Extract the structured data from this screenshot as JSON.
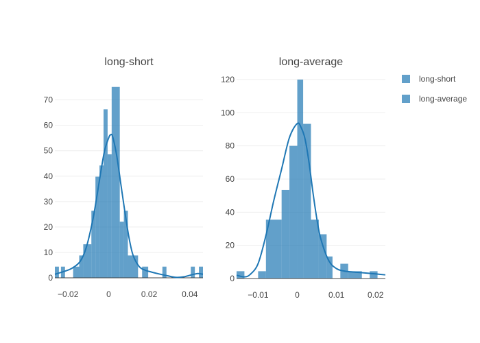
{
  "chart_data": [
    {
      "type": "histogram",
      "title": "long-short",
      "color": "#1f77b4",
      "xlim": [
        -0.0265,
        0.0465
      ],
      "ylim": [
        0,
        78
      ],
      "xticks": [
        -0.02,
        0,
        0.02,
        0.04
      ],
      "xtick_labels": [
        "−0.02",
        "0",
        "0.02",
        "0.04"
      ],
      "yticks": [
        0,
        10,
        20,
        30,
        40,
        50,
        60,
        70
      ],
      "bins": [
        {
          "x0": -0.0265,
          "x1": -0.0245,
          "y": 4.4
        },
        {
          "x0": -0.0235,
          "x1": -0.0215,
          "y": 4.4
        },
        {
          "x0": -0.0175,
          "x1": -0.0145,
          "y": 4.4
        },
        {
          "x0": -0.0145,
          "x1": -0.0125,
          "y": 8.8
        },
        {
          "x0": -0.0125,
          "x1": -0.0085,
          "y": 13.2
        },
        {
          "x0": -0.0085,
          "x1": -0.0065,
          "y": 26.4
        },
        {
          "x0": -0.0065,
          "x1": -0.0045,
          "y": 39.8
        },
        {
          "x0": -0.0045,
          "x1": -0.0025,
          "y": 44.2
        },
        {
          "x0": -0.0025,
          "x1": -0.0005,
          "y": 66.3
        },
        {
          "x0": -0.0005,
          "x1": 0.0015,
          "y": 48.6
        },
        {
          "x0": 0.0015,
          "x1": 0.0055,
          "y": 75.1
        },
        {
          "x0": 0.0055,
          "x1": 0.0075,
          "y": 22.1
        },
        {
          "x0": 0.0075,
          "x1": 0.0095,
          "y": 26.4
        },
        {
          "x0": 0.0095,
          "x1": 0.0145,
          "y": 8.8
        },
        {
          "x0": 0.0165,
          "x1": 0.0195,
          "y": 4.4
        },
        {
          "x0": 0.0265,
          "x1": 0.0285,
          "y": 4.4
        },
        {
          "x0": 0.0405,
          "x1": 0.0425,
          "y": 4.4
        },
        {
          "x0": 0.0445,
          "x1": 0.0465,
          "y": 4.4
        }
      ],
      "kde": [
        [
          -0.0265,
          1.4
        ],
        [
          -0.022,
          2.5
        ],
        [
          -0.018,
          3.8
        ],
        [
          -0.014,
          6.5
        ],
        [
          -0.011,
          12
        ],
        [
          -0.008,
          22
        ],
        [
          -0.006,
          31
        ],
        [
          -0.004,
          41
        ],
        [
          -0.002,
          50
        ],
        [
          0,
          55
        ],
        [
          0.001,
          56.3
        ],
        [
          0.002,
          55.5
        ],
        [
          0.004,
          48
        ],
        [
          0.006,
          37
        ],
        [
          0.008,
          26
        ],
        [
          0.01,
          16
        ],
        [
          0.012,
          9
        ],
        [
          0.015,
          4.5
        ],
        [
          0.018,
          3
        ],
        [
          0.021,
          2.3
        ],
        [
          0.025,
          1.5
        ],
        [
          0.029,
          0.8
        ],
        [
          0.033,
          0.2
        ],
        [
          0.037,
          0.4
        ],
        [
          0.041,
          1.2
        ],
        [
          0.044,
          1.7
        ],
        [
          0.0465,
          1.4
        ]
      ]
    },
    {
      "type": "histogram",
      "title": "long-average",
      "color": "#1f77b4",
      "xlim": [
        -0.0155,
        0.0225
      ],
      "ylim": [
        0,
        120
      ],
      "xticks": [
        -0.01,
        0,
        0.01,
        0.02
      ],
      "xtick_labels": [
        "−0.01",
        "0",
        "0.01",
        "0.02"
      ],
      "yticks": [
        0,
        20,
        40,
        60,
        80,
        100,
        120
      ],
      "bins": [
        {
          "x0": -0.0155,
          "x1": -0.0135,
          "y": 4.4
        },
        {
          "x0": -0.01,
          "x1": -0.008,
          "y": 4.4
        },
        {
          "x0": -0.008,
          "x1": -0.004,
          "y": 35.5
        },
        {
          "x0": -0.004,
          "x1": -0.002,
          "y": 53.4
        },
        {
          "x0": -0.002,
          "x1": 0.0,
          "y": 80.0
        },
        {
          "x0": 0.0,
          "x1": 0.0015,
          "y": 120.0
        },
        {
          "x0": 0.0015,
          "x1": 0.0035,
          "y": 93.3
        },
        {
          "x0": 0.0035,
          "x1": 0.0055,
          "y": 35.5
        },
        {
          "x0": 0.0055,
          "x1": 0.0075,
          "y": 26.7
        },
        {
          "x0": 0.0075,
          "x1": 0.009,
          "y": 13.3
        },
        {
          "x0": 0.011,
          "x1": 0.013,
          "y": 8.9
        },
        {
          "x0": 0.013,
          "x1": 0.0165,
          "y": 4.4
        },
        {
          "x0": 0.0185,
          "x1": 0.0205,
          "y": 4.4
        }
      ],
      "kde": [
        [
          -0.0155,
          2.0
        ],
        [
          -0.0135,
          1.0
        ],
        [
          -0.012,
          2.5
        ],
        [
          -0.01,
          9
        ],
        [
          -0.008,
          26
        ],
        [
          -0.006,
          47
        ],
        [
          -0.004,
          66
        ],
        [
          -0.002,
          85
        ],
        [
          0,
          93.5
        ],
        [
          0.001,
          91
        ],
        [
          0.002,
          84
        ],
        [
          0.003,
          70
        ],
        [
          0.004,
          52
        ],
        [
          0.005,
          36
        ],
        [
          0.006,
          24
        ],
        [
          0.008,
          11
        ],
        [
          0.01,
          6
        ],
        [
          0.012,
          4.5
        ],
        [
          0.014,
          4
        ],
        [
          0.016,
          3.6
        ],
        [
          0.018,
          3.2
        ],
        [
          0.02,
          2.8
        ],
        [
          0.0225,
          2.2
        ]
      ]
    }
  ],
  "legend": {
    "placement": "top-right",
    "items": [
      "long-short",
      "long-average"
    ]
  }
}
